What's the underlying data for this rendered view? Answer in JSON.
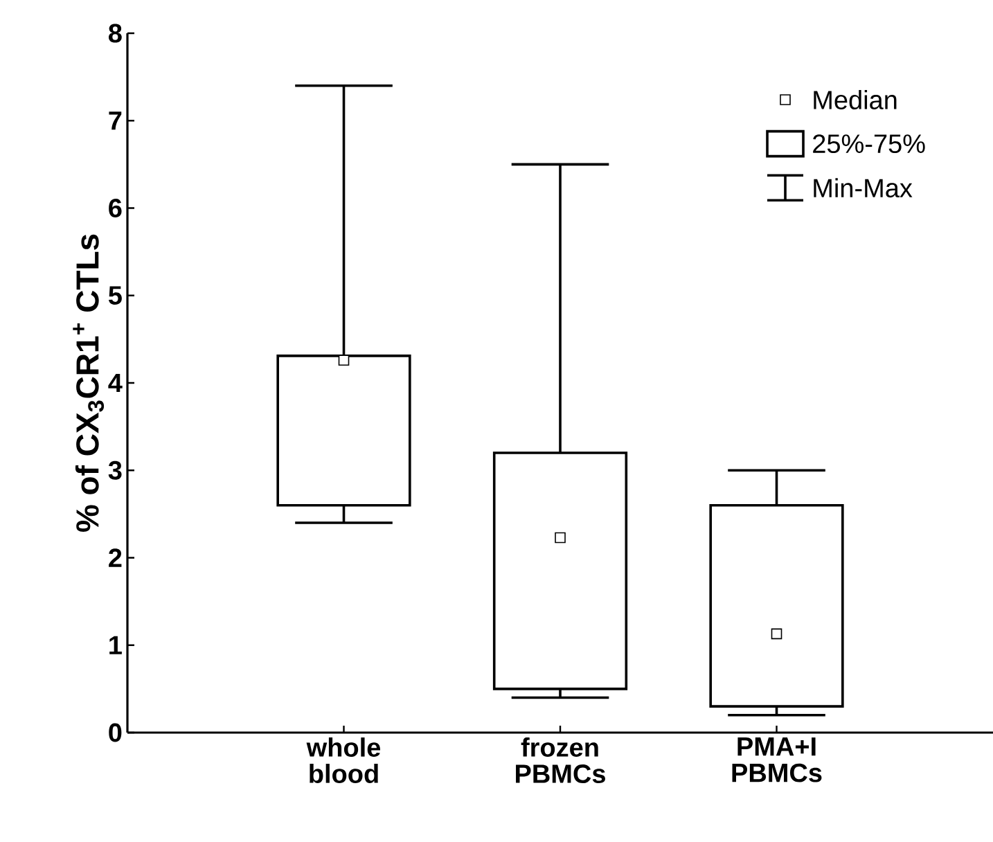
{
  "chart_data": {
    "type": "box",
    "ylabel": "% of CX$_{3}$CR1$^{+}$ CTLs",
    "categories": [
      "whole blood",
      "frozen PBMCs",
      "PMA+I PBMCs"
    ],
    "ylim": [
      0,
      8
    ],
    "yticks": [
      0,
      1,
      2,
      3,
      4,
      5,
      6,
      7,
      8
    ],
    "marker": "square",
    "annotations": [
      "Median",
      "25%-75%",
      "Min-Max"
    ],
    "series": [
      {
        "color": "#000000",
        "boxes": [
          {
            "low": 2.4,
            "q1": 2.6,
            "median": 4.26,
            "q3": 4.31,
            "high": 7.4
          },
          {
            "low": 0.4,
            "q1": 0.5,
            "median": 2.23,
            "q3": 3.2,
            "high": 6.5
          },
          {
            "low": 0.2,
            "q1": 0.3,
            "median": 1.13,
            "q3": 2.6,
            "high": 3.0
          }
        ]
      }
    ]
  }
}
